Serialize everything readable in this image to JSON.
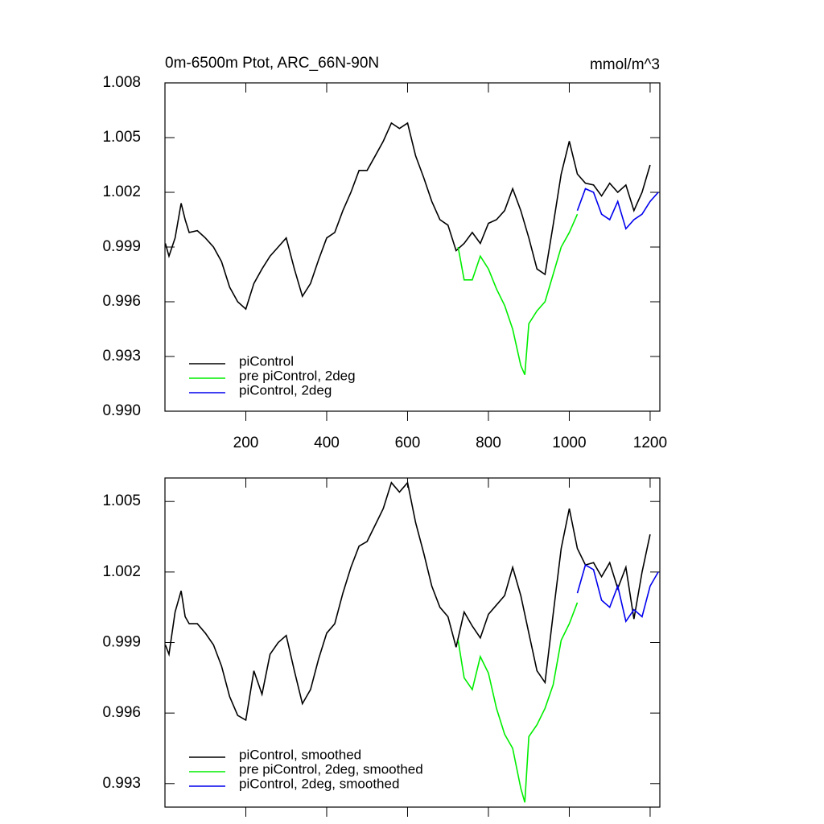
{
  "chart_data": [
    {
      "type": "line",
      "title": "0m-6500m Ptot, ARC_66N-90N",
      "units": "mmol/m^3",
      "xlim": [
        0,
        1224
      ],
      "xticks": [
        200,
        400,
        600,
        800,
        1000,
        1200
      ],
      "ylim": [
        0.99,
        1.008
      ],
      "yticks": [
        {
          "value": 0.99,
          "label": "0.990"
        },
        0.993,
        0.996,
        0.999,
        1.002,
        1.005,
        1.008
      ],
      "series": [
        {
          "name": "piControl",
          "color": "#000000",
          "x": [
            1,
            10,
            25,
            40,
            50,
            60,
            80,
            100,
            120,
            140,
            160,
            180,
            200,
            220,
            240,
            260,
            280,
            300,
            320,
            340,
            360,
            380,
            400,
            420,
            440,
            460,
            480,
            500,
            520,
            540,
            560,
            580,
            600,
            620,
            640,
            660,
            680,
            700,
            720,
            740,
            760,
            780,
            800,
            820,
            840,
            860,
            880,
            900,
            920,
            940,
            960,
            980,
            1000,
            1020,
            1040,
            1060,
            1080,
            1100,
            1120,
            1140,
            1160,
            1180,
            1200
          ],
          "values": [
            0.9992,
            0.9985,
            0.9995,
            1.0014,
            1.0005,
            0.9998,
            0.9999,
            0.9995,
            0.999,
            0.9982,
            0.9968,
            0.996,
            0.9956,
            0.997,
            0.9978,
            0.9985,
            0.999,
            0.9995,
            0.9978,
            0.9963,
            0.997,
            0.9983,
            0.9995,
            0.9998,
            1.001,
            1.002,
            1.0032,
            1.0032,
            1.004,
            1.0048,
            1.0058,
            1.0055,
            1.0058,
            1.004,
            1.0028,
            1.0015,
            1.0005,
            1.0002,
            0.9988,
            0.9992,
            0.9998,
            0.9992,
            1.0003,
            1.0005,
            1.001,
            1.0022,
            1.001,
            0.9995,
            0.9978,
            0.9975,
            1.0002,
            1.003,
            1.0048,
            1.003,
            1.0025,
            1.0024,
            1.0018,
            1.0025,
            1.002,
            1.0024,
            1.001,
            1.002,
            1.0035
          ]
        },
        {
          "name": "pre piControl, 2deg",
          "color": "#00ee00",
          "x": [
            725,
            740,
            760,
            780,
            800,
            820,
            840,
            860,
            880,
            890,
            900,
            920,
            940,
            960,
            980,
            1000,
            1020
          ],
          "values": [
            0.999,
            0.9972,
            0.9972,
            0.9985,
            0.9978,
            0.9967,
            0.9958,
            0.9945,
            0.9925,
            0.992,
            0.9948,
            0.9955,
            0.996,
            0.9975,
            0.999,
            0.9998,
            1.0008
          ]
        },
        {
          "name": "piControl, 2deg",
          "color": "#0000ee",
          "x": [
            1020,
            1040,
            1060,
            1080,
            1100,
            1120,
            1140,
            1160,
            1180,
            1200,
            1220
          ],
          "values": [
            1.001,
            1.0022,
            1.002,
            1.0008,
            1.0005,
            1.0015,
            1.0,
            1.0005,
            1.0008,
            1.0015,
            1.002
          ]
        }
      ]
    },
    {
      "type": "line",
      "xlim": [
        0,
        1224
      ],
      "xticks": [
        200,
        400,
        600,
        800,
        1000,
        1200
      ],
      "ylim": [
        0.992,
        1.006
      ],
      "yticks": [
        0.993,
        0.996,
        0.999,
        1.002,
        1.005
      ],
      "series": [
        {
          "name": "piControl, smoothed",
          "color": "#000000",
          "x": [
            1,
            10,
            25,
            40,
            50,
            60,
            80,
            100,
            120,
            140,
            160,
            180,
            200,
            220,
            240,
            260,
            280,
            300,
            320,
            340,
            360,
            380,
            400,
            420,
            440,
            460,
            480,
            500,
            520,
            540,
            560,
            580,
            600,
            620,
            640,
            660,
            680,
            700,
            720,
            740,
            760,
            780,
            800,
            820,
            840,
            860,
            880,
            900,
            920,
            940,
            960,
            980,
            1000,
            1020,
            1040,
            1060,
            1080,
            1100,
            1120,
            1140,
            1160,
            1180,
            1200
          ],
          "values": [
            0.9989,
            0.9985,
            1.0003,
            1.0012,
            1.0001,
            0.9998,
            0.9998,
            0.9994,
            0.9989,
            0.998,
            0.9967,
            0.9959,
            0.9957,
            0.9978,
            0.9968,
            0.9985,
            0.999,
            0.9993,
            0.9978,
            0.9964,
            0.997,
            0.9983,
            0.9994,
            0.9998,
            1.0011,
            1.0022,
            1.0031,
            1.0033,
            1.004,
            1.0047,
            1.0058,
            1.0054,
            1.0058,
            1.0041,
            1.0028,
            1.0014,
            1.0005,
            1.0001,
            0.9988,
            1.0003,
            0.9997,
            0.9992,
            1.0002,
            1.0006,
            1.001,
            1.0022,
            1.001,
            0.9994,
            0.9978,
            0.9973,
            1.0002,
            1.003,
            1.0047,
            1.003,
            1.0023,
            1.0024,
            1.0018,
            1.0024,
            1.0013,
            1.0022,
            1.0,
            1.002,
            1.0036
          ]
        },
        {
          "name": "pre piControl, 2deg, smoothed",
          "color": "#00ee00",
          "x": [
            725,
            740,
            760,
            780,
            800,
            820,
            840,
            860,
            880,
            890,
            900,
            920,
            940,
            960,
            980,
            1000,
            1020
          ],
          "values": [
            0.9991,
            0.9975,
            0.997,
            0.9984,
            0.9977,
            0.9962,
            0.9951,
            0.9945,
            0.9928,
            0.9922,
            0.995,
            0.9955,
            0.9962,
            0.9972,
            0.9991,
            0.9998,
            1.0007
          ]
        },
        {
          "name": "piControl, 2deg, smoothed",
          "color": "#0000ee",
          "x": [
            1020,
            1040,
            1060,
            1080,
            1100,
            1120,
            1140,
            1160,
            1180,
            1200,
            1220
          ],
          "values": [
            1.0011,
            1.0023,
            1.0021,
            1.0008,
            1.0005,
            1.0014,
            0.9999,
            1.0004,
            1.0001,
            1.0014,
            1.002
          ]
        }
      ]
    }
  ]
}
